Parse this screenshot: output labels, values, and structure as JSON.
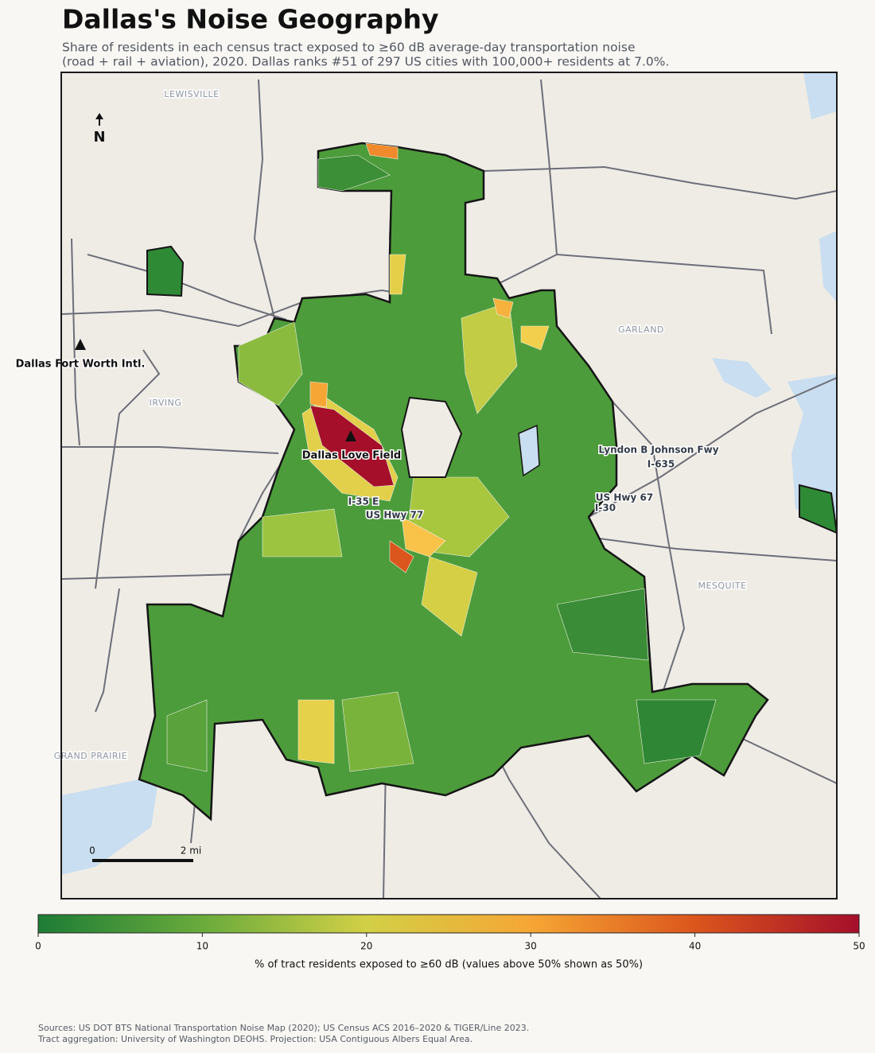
{
  "header": {
    "title": "Dallas's Noise Geography",
    "subtitle": [
      "Share of residents in each census tract exposed to ≥60 dB average-day transportation noise",
      "(road + rail + aviation), 2020. Dallas ranks #51 of 297 US cities with 100,000+ residents at 7.0%."
    ]
  },
  "map": {
    "place_labels": [
      "LEWISVILLE",
      "GARLAND",
      "IRVING",
      "MESQUITE",
      "GRAND PRAIRIE"
    ],
    "airport_labels": [
      "Dallas Fort Worth Intl.",
      "Dallas Love Field"
    ],
    "road_labels": [
      "Lyndon B Johnson Fwy",
      "I-635",
      "US Hwy 67",
      "I-30",
      "I-35 E",
      "US Hwy 77"
    ],
    "north_label": "N",
    "scale_labels": [
      "0",
      "2 mi"
    ]
  },
  "colorbar": {
    "range": [
      0,
      50
    ],
    "ticks": [
      0,
      10,
      20,
      30,
      40,
      50
    ],
    "colors": [
      "#1d7c36",
      "#6aab3c",
      "#d2d046",
      "#f6a634",
      "#db561c",
      "#a50f2a"
    ],
    "label": "% of tract residents exposed to ≥60 dB (values above 50% shown as 50%)"
  },
  "footer": {
    "sources": [
      "Sources: US DOT BTS National Transportation Noise Map (2020); US Census ACS 2016–2020 & TIGER/Line 2023.",
      "Tract aggregation: University of Washington DEOHS. Projection: USA Contiguous Albers Equal Area."
    ]
  }
}
